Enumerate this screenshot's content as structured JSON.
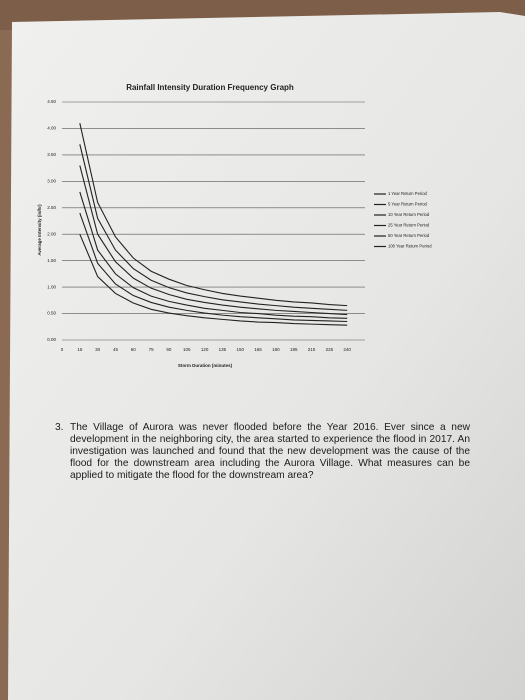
{
  "chart_data": {
    "type": "line",
    "title": "Rainfall Intensity Duration Frequency Graph",
    "x_label": "Storm Duration (minutes)",
    "y_label": "Average Intensity (in/hr)",
    "x": [
      15,
      30,
      45,
      60,
      75,
      90,
      105,
      120,
      135,
      150,
      165,
      180,
      195,
      210,
      225,
      240
    ],
    "series": [
      {
        "name": "1 Year Return Period",
        "color": "#222222",
        "values": [
          2.0,
          1.2,
          0.88,
          0.7,
          0.58,
          0.51,
          0.46,
          0.42,
          0.39,
          0.36,
          0.34,
          0.33,
          0.31,
          0.3,
          0.29,
          0.28
        ]
      },
      {
        "name": "5 Year Return Period",
        "color": "#222222",
        "values": [
          2.4,
          1.45,
          1.06,
          0.84,
          0.71,
          0.62,
          0.56,
          0.51,
          0.47,
          0.44,
          0.42,
          0.4,
          0.38,
          0.37,
          0.36,
          0.35
        ]
      },
      {
        "name": "10 Year Return Period",
        "color": "#222222",
        "values": [
          2.8,
          1.7,
          1.25,
          0.99,
          0.83,
          0.73,
          0.66,
          0.6,
          0.56,
          0.52,
          0.5,
          0.47,
          0.45,
          0.44,
          0.42,
          0.41
        ]
      },
      {
        "name": "25 Year Return Period",
        "color": "#222222",
        "values": [
          3.3,
          2.0,
          1.48,
          1.17,
          0.98,
          0.86,
          0.77,
          0.71,
          0.66,
          0.62,
          0.59,
          0.56,
          0.54,
          0.52,
          0.5,
          0.48
        ]
      },
      {
        "name": "50 Year Return Period",
        "color": "#222222",
        "values": [
          3.7,
          2.3,
          1.7,
          1.35,
          1.13,
          0.99,
          0.89,
          0.82,
          0.76,
          0.72,
          0.68,
          0.65,
          0.62,
          0.6,
          0.58,
          0.56
        ]
      },
      {
        "name": "100 Year Return Period",
        "color": "#222222",
        "values": [
          4.1,
          2.6,
          1.95,
          1.55,
          1.3,
          1.15,
          1.03,
          0.95,
          0.88,
          0.83,
          0.79,
          0.75,
          0.72,
          0.7,
          0.67,
          0.65
        ]
      }
    ],
    "xlim": [
      0,
      255
    ],
    "xticks": [
      0,
      15,
      30,
      45,
      60,
      75,
      90,
      105,
      120,
      135,
      150,
      165,
      180,
      195,
      210,
      225,
      240
    ],
    "ylim": [
      0,
      4.5
    ],
    "yticks": [
      {
        "value": 0,
        "label": "0.00"
      },
      {
        "value": 0.5,
        "label": "0.50"
      },
      {
        "value": 1,
        "label": "1.00"
      },
      {
        "value": 1.5,
        "label": "1.50"
      },
      {
        "value": 2,
        "label": "2.00"
      },
      {
        "value": 2.5,
        "label": "2.50"
      },
      {
        "value": 3,
        "label": "3.00"
      },
      {
        "value": 3.5,
        "label": "3.50"
      },
      {
        "value": 4,
        "label": "4.00"
      },
      {
        "value": 4.5,
        "label": "4.50"
      }
    ],
    "grid": true,
    "legend": "right"
  },
  "question": {
    "number": "3.",
    "text": "The Village of Aurora was never flooded before the Year 2016. Ever since a new development in the neighboring city, the area started to experience the flood in 2017. An investigation was launched and found that the new development was the cause of the flood for the downstream area including the Aurora Village. What measures can be applied to mitigate the flood for the downstream area?"
  }
}
